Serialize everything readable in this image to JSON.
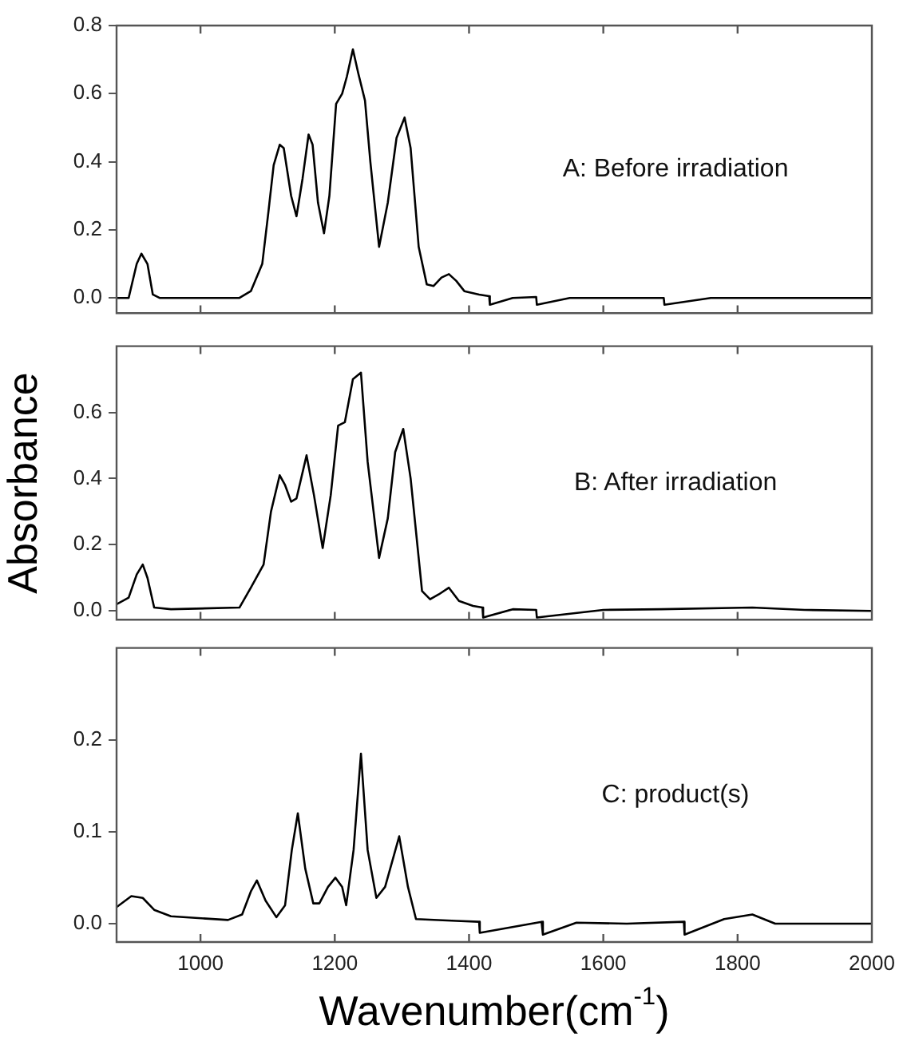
{
  "chart_data": [
    {
      "type": "line",
      "annotations": [
        "A: Before irradiation"
      ],
      "marker": "none",
      "tick_labels": "y",
      "color": "#000000",
      "x": [
        875,
        893,
        905,
        912,
        921,
        929,
        939,
        1058,
        1075,
        1092,
        1101,
        1109,
        1118,
        1124,
        1135,
        1143,
        1152,
        1161,
        1167,
        1175,
        1184,
        1192,
        1202,
        1211,
        1218,
        1227,
        1235,
        1245,
        1253,
        1266,
        1279,
        1292,
        1304,
        1313,
        1325,
        1337,
        1347,
        1359,
        1370,
        1381,
        1393,
        1415,
        1430,
        1431,
        1465,
        1500,
        1501,
        1550,
        1600,
        1690,
        1691,
        1760,
        1800,
        1900,
        2000
      ],
      "values": [
        0,
        0,
        0.1,
        0.13,
        0.1,
        0.01,
        0,
        0,
        0.02,
        0.1,
        0.25,
        0.39,
        0.45,
        0.44,
        0.3,
        0.24,
        0.35,
        0.48,
        0.45,
        0.28,
        0.19,
        0.3,
        0.57,
        0.6,
        0.65,
        0.73,
        0.66,
        0.58,
        0.4,
        0.15,
        0.28,
        0.47,
        0.53,
        0.44,
        0.15,
        0.04,
        0.035,
        0.06,
        0.07,
        0.05,
        0.02,
        0.01,
        0.005,
        -0.02,
        0,
        0.003,
        -0.02,
        0,
        0,
        0,
        -0.02,
        0,
        0,
        0,
        0
      ],
      "xlim": [
        875,
        2000
      ],
      "xticks": [
        1000,
        1200,
        1400,
        1600,
        1800,
        2000
      ],
      "ylim": [
        -0.045,
        0.8
      ],
      "yticks": [
        {
          "value": 0,
          "label": "0.0"
        },
        {
          "value": 0.2,
          "label": "0.2"
        },
        {
          "value": 0.4,
          "label": "0.4"
        },
        {
          "value": 0.6,
          "label": "0.6"
        },
        {
          "value": 0.8,
          "label": "0.8"
        }
      ]
    },
    {
      "type": "line",
      "ylabel": "Absorbance",
      "annotations": [
        "B: After irradiation"
      ],
      "marker": "none",
      "tick_labels": "y",
      "color": "#000000",
      "x": [
        875,
        893,
        905,
        914,
        921,
        931,
        956,
        1058,
        1075,
        1094,
        1105,
        1118,
        1126,
        1135,
        1143,
        1158,
        1169,
        1182,
        1194,
        1205,
        1215,
        1227,
        1239,
        1249,
        1266,
        1279,
        1290,
        1302,
        1313,
        1330,
        1342,
        1355,
        1370,
        1385,
        1406,
        1420,
        1421,
        1465,
        1500,
        1501,
        1600,
        1686,
        1822,
        1900,
        2000
      ],
      "values": [
        0.02,
        0.04,
        0.11,
        0.14,
        0.1,
        0.01,
        0.005,
        0.01,
        0.07,
        0.14,
        0.3,
        0.41,
        0.38,
        0.33,
        0.34,
        0.47,
        0.35,
        0.19,
        0.35,
        0.56,
        0.57,
        0.7,
        0.72,
        0.45,
        0.16,
        0.28,
        0.48,
        0.55,
        0.4,
        0.06,
        0.035,
        0.05,
        0.07,
        0.03,
        0.015,
        0.01,
        -0.02,
        0.005,
        0.003,
        -0.02,
        0.003,
        0.005,
        0.01,
        0.003,
        0
      ],
      "xlim": [
        875,
        2000
      ],
      "xticks": [
        1000,
        1200,
        1400,
        1600,
        1800,
        2000
      ],
      "ylim": [
        -0.027,
        0.8
      ],
      "yticks": [
        {
          "value": 0,
          "label": "0.0"
        },
        {
          "value": 0.2,
          "label": "0.2"
        },
        {
          "value": 0.4,
          "label": "0.4"
        },
        {
          "value": 0.6,
          "label": "0.6"
        }
      ]
    },
    {
      "type": "line",
      "xlabel": "Wavenumber(cm$^{-1}$)",
      "annotations": [
        "C: product(s)"
      ],
      "marker": "none",
      "color": "#000000",
      "x": [
        875,
        897,
        914,
        931,
        956,
        1041,
        1062,
        1075,
        1084,
        1097,
        1113,
        1126,
        1136,
        1145,
        1156,
        1168,
        1177,
        1190,
        1201,
        1211,
        1217,
        1228,
        1239,
        1249,
        1262,
        1275,
        1296,
        1309,
        1321,
        1381,
        1415,
        1416,
        1508,
        1510,
        1560,
        1635,
        1720,
        1721,
        1780,
        1822,
        1856,
        2000
      ],
      "values": [
        0.018,
        0.03,
        0.028,
        0.015,
        0.008,
        0.004,
        0.01,
        0.035,
        0.047,
        0.025,
        0.007,
        0.02,
        0.08,
        0.12,
        0.06,
        0.022,
        0.022,
        0.04,
        0.05,
        0.04,
        0.02,
        0.08,
        0.185,
        0.08,
        0.028,
        0.04,
        0.095,
        0.04,
        0.005,
        0.003,
        0.002,
        -0.01,
        0.002,
        -0.012,
        0.001,
        0,
        0.002,
        -0.012,
        0.005,
        0.01,
        0,
        0
      ],
      "xlim": [
        875,
        2000
      ],
      "xticks": [
        1000,
        1200,
        1400,
        1600,
        1800,
        2000
      ],
      "ylim": [
        -0.02,
        0.3
      ],
      "yticks": [
        {
          "value": 0,
          "label": "0.0"
        },
        {
          "value": 0.1,
          "label": "0.1"
        },
        {
          "value": 0.2,
          "label": "0.2"
        }
      ]
    }
  ]
}
